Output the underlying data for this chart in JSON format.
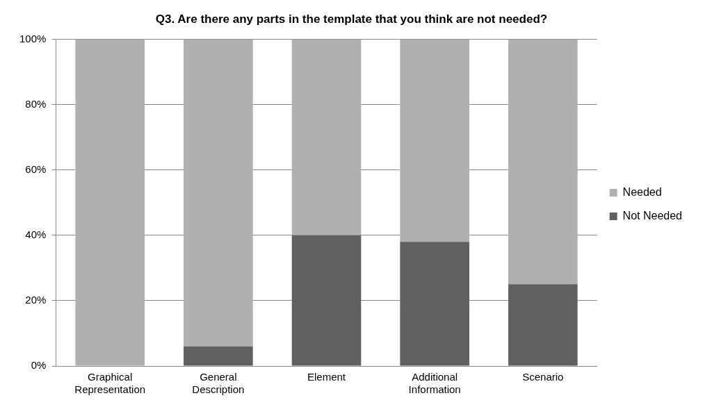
{
  "chart_data": {
    "type": "bar",
    "title": "Q3. Are there any parts in the template that you think are not needed?",
    "categories": [
      "Graphical Representation",
      "General Description",
      "Element",
      "Additional Information",
      "Scenario"
    ],
    "stacked": true,
    "series": [
      {
        "name": "Not Needed",
        "color": "#606060",
        "values": [
          0,
          6,
          40,
          38,
          25
        ]
      },
      {
        "name": "Needed",
        "color": "#b0b0b0",
        "values": [
          100,
          94,
          60,
          62,
          75
        ]
      }
    ],
    "ylim": [
      0,
      100
    ],
    "yticks": [
      {
        "value": 0,
        "label": "0%"
      },
      {
        "value": 20,
        "label": "20%"
      },
      {
        "value": 40,
        "label": "40%"
      },
      {
        "value": 60,
        "label": "60%"
      },
      {
        "value": 80,
        "label": "80%"
      },
      {
        "value": 100,
        "label": "100%"
      }
    ],
    "grid": "y",
    "legend": "right"
  }
}
